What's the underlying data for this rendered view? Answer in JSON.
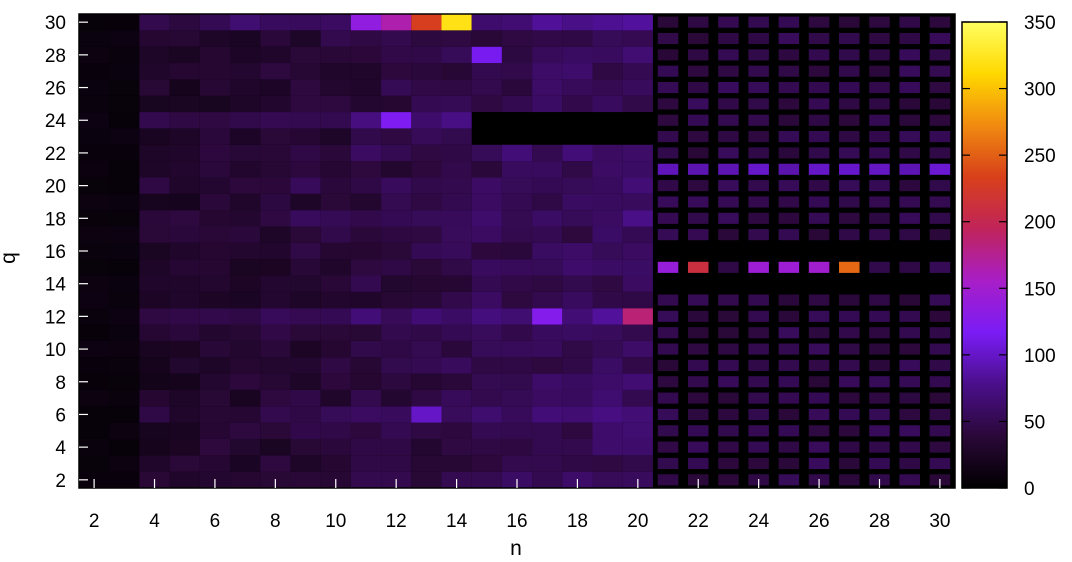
{
  "chart_data": {
    "type": "heatmap",
    "title": "",
    "xlabel": "n",
    "ylabel": "q",
    "x_range": [
      2,
      30
    ],
    "y_range": [
      2,
      30
    ],
    "x_ticks": [
      "2",
      "4",
      "6",
      "8",
      "10",
      "12",
      "14",
      "16",
      "18",
      "20",
      "22",
      "24",
      "26",
      "28",
      "30"
    ],
    "y_ticks": [
      "2",
      "4",
      "6",
      "8",
      "10",
      "12",
      "14",
      "16",
      "18",
      "20",
      "22",
      "24",
      "26",
      "28",
      "30"
    ],
    "colorbar": {
      "range": [
        0,
        350
      ],
      "ticks": [
        "0",
        "50",
        "100",
        "150",
        "200",
        "250",
        "300",
        "350"
      ],
      "colormap": [
        "#000000",
        "#2a0838",
        "#4a0f8a",
        "#7a1cf5",
        "#a81ec8",
        "#c0245a",
        "#d8401a",
        "#f08a10",
        "#ffd800",
        "#ffff60"
      ]
    },
    "notable_values": [
      {
        "n": 14,
        "q": 30,
        "value": 320
      },
      {
        "n": 13,
        "q": 30,
        "value": 230
      },
      {
        "n": 12,
        "q": 30,
        "value": 165
      },
      {
        "n": 11,
        "q": 30,
        "value": 135
      },
      {
        "n": 27,
        "q": 15,
        "value": 255
      },
      {
        "n": 22,
        "q": 15,
        "value": 210
      },
      {
        "n": 21,
        "q": 15,
        "value": 140
      },
      {
        "n": 24,
        "q": 15,
        "value": 145
      },
      {
        "n": 25,
        "q": 15,
        "value": 145
      },
      {
        "n": 26,
        "q": 15,
        "value": 150
      },
      {
        "n": 20,
        "q": 12,
        "value": 185
      },
      {
        "n": 17,
        "q": 12,
        "value": 125
      },
      {
        "n": 15,
        "q": 28,
        "value": 115
      },
      {
        "n": 12,
        "q": 24,
        "value": 120
      },
      {
        "n": 13,
        "q": 6,
        "value": 100
      }
    ]
  }
}
